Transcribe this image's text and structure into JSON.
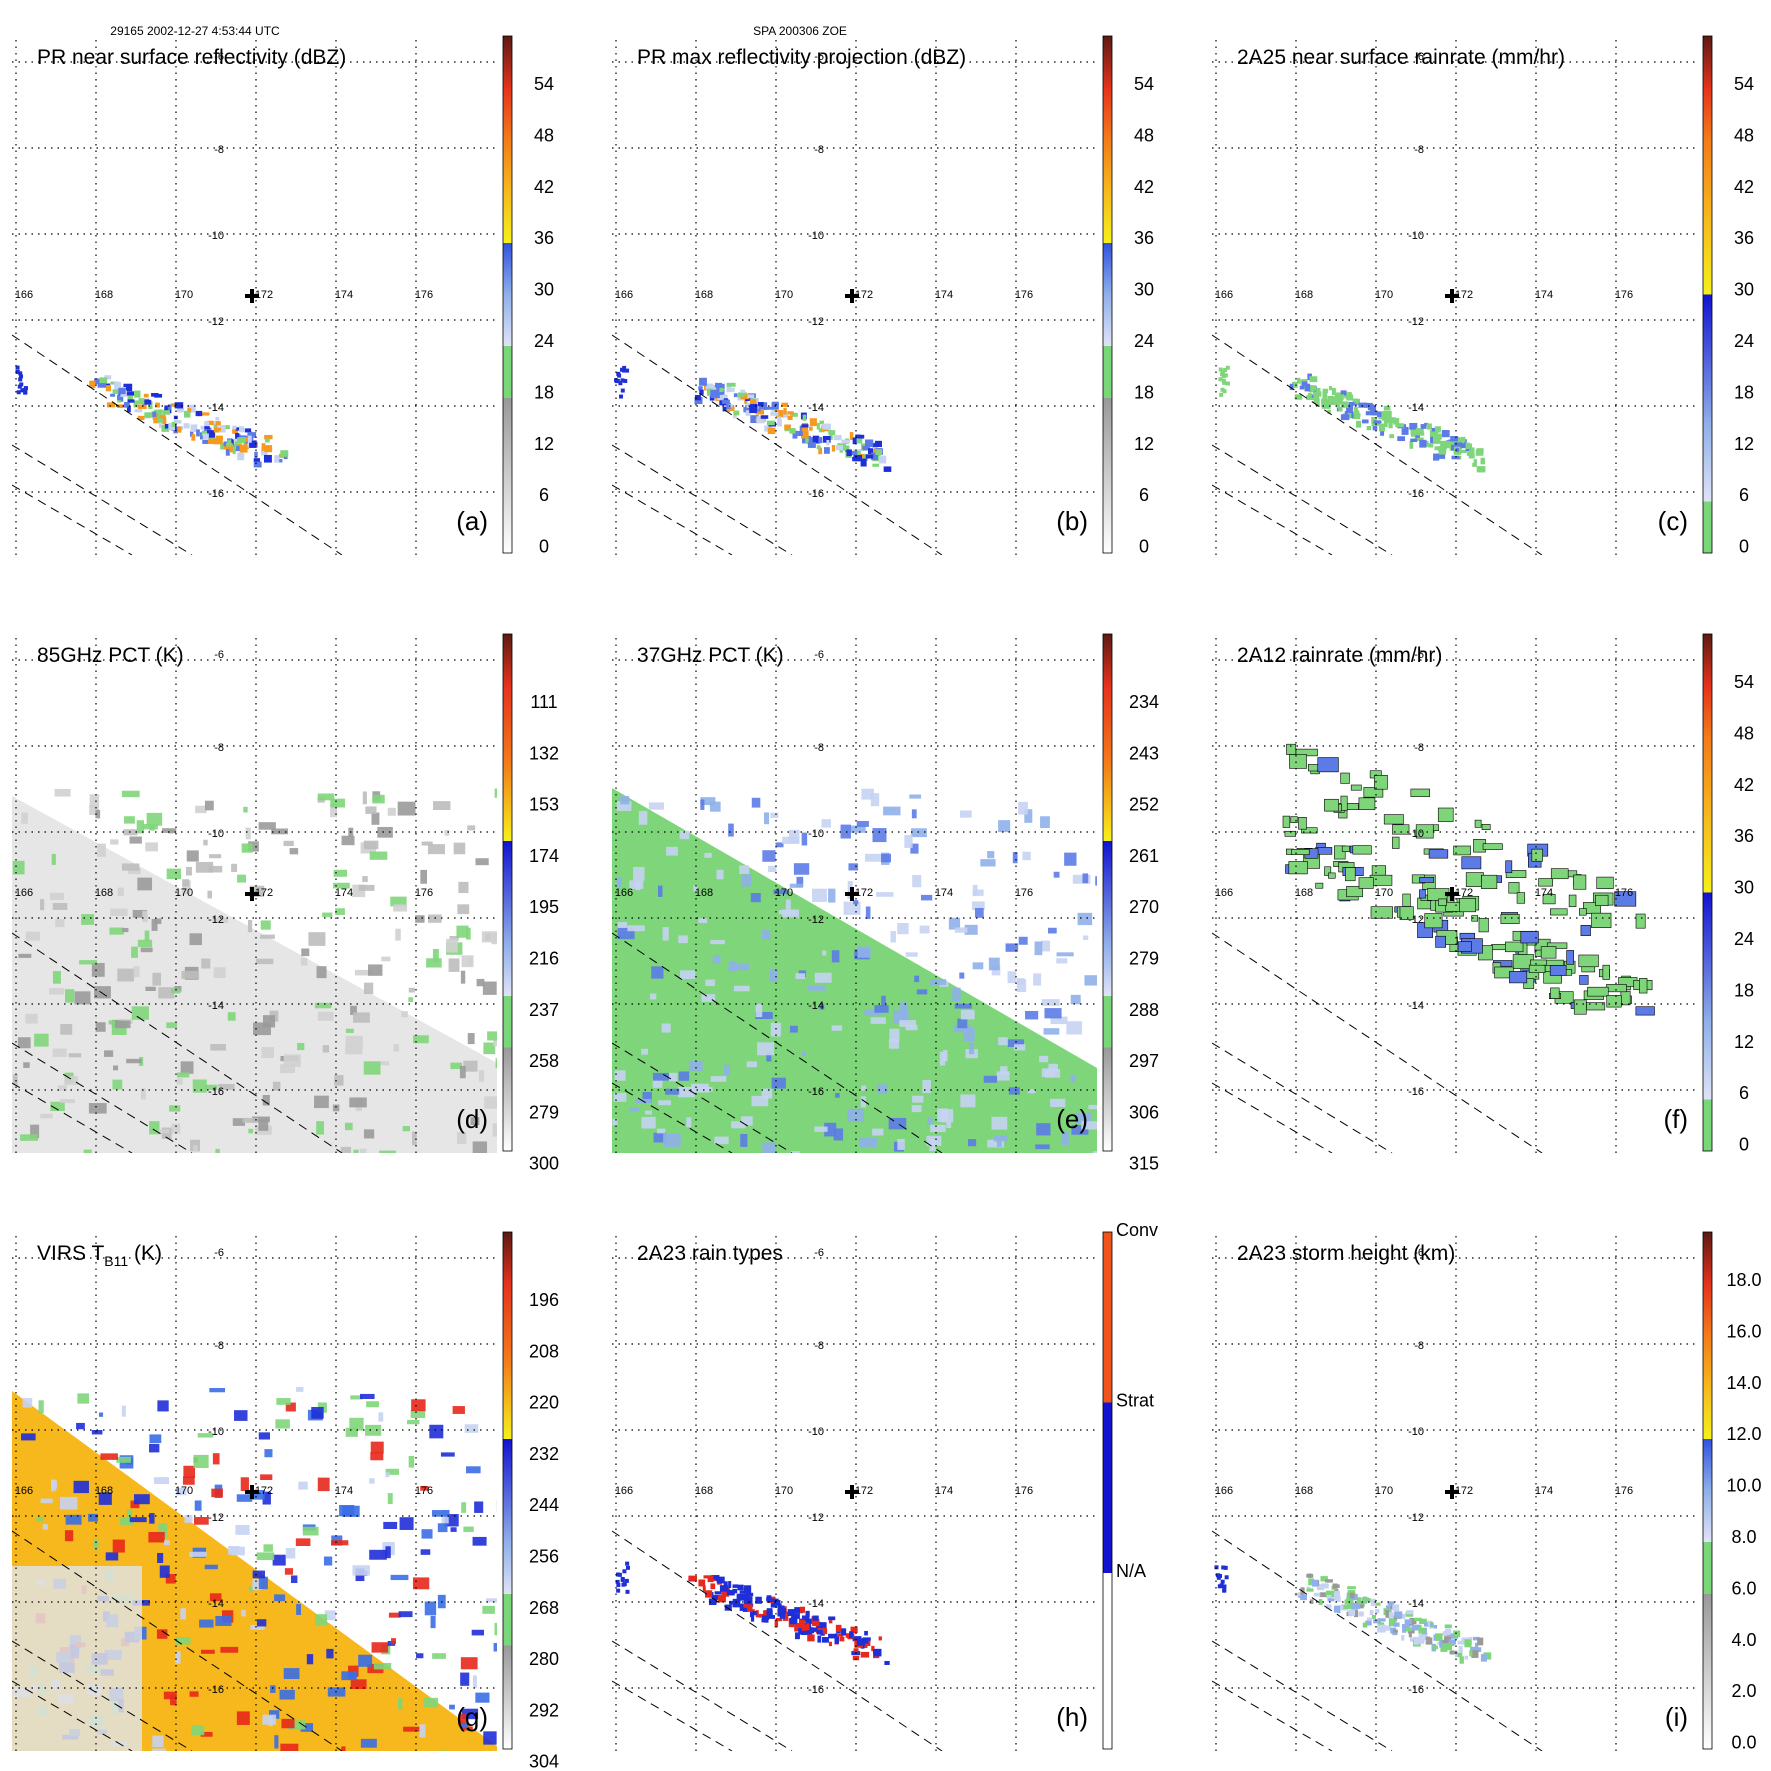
{
  "header": {
    "left": "29165 2002-12-27 4:53:44 UTC",
    "center": "SPA 200306 ZOE"
  },
  "lon_labels": [
    "166",
    "168",
    "170",
    "172",
    "174",
    "176"
  ],
  "lat_labels": [
    "-6",
    "-8",
    "-10",
    "-12",
    "-14",
    "-16"
  ],
  "panels": [
    {
      "id": "a",
      "title": "PR near surface reflectivity (dBZ)",
      "letter": "(a)",
      "ticks": [
        "54",
        "48",
        "42",
        "36",
        "30",
        "24",
        "18",
        "12",
        "6",
        "0"
      ],
      "scale": "dbz",
      "data": "pr"
    },
    {
      "id": "b",
      "title": "PR max reflectivity projection (dBZ)",
      "letter": "(b)",
      "ticks": [
        "54",
        "48",
        "42",
        "36",
        "30",
        "24",
        "18",
        "12",
        "6",
        "0"
      ],
      "scale": "dbz",
      "data": "pr"
    },
    {
      "id": "c",
      "title": "2A25 near surface rainrate (mm/hr)",
      "letter": "(c)",
      "ticks": [
        "54",
        "48",
        "42",
        "36",
        "30",
        "24",
        "18",
        "12",
        "6",
        "0"
      ],
      "scale": "rain",
      "data": "pr"
    },
    {
      "id": "d",
      "title": "85GHz PCT (K)",
      "letter": "(d)",
      "ticks": [
        "111",
        "132",
        "153",
        "174",
        "195",
        "216",
        "237",
        "258",
        "279",
        "300"
      ],
      "scale": "pct",
      "data": "tmi"
    },
    {
      "id": "e",
      "title": "37GHz PCT (K)",
      "letter": "(e)",
      "ticks": [
        "234",
        "243",
        "252",
        "261",
        "270",
        "279",
        "288",
        "297",
        "306",
        "315"
      ],
      "scale": "pct",
      "data": "tmi"
    },
    {
      "id": "f",
      "title": "2A12 rainrate (mm/hr)",
      "letter": "(f)",
      "ticks": [
        "54",
        "48",
        "42",
        "36",
        "30",
        "24",
        "18",
        "12",
        "6",
        "0"
      ],
      "scale": "rain",
      "data": "tmi"
    },
    {
      "id": "g",
      "title": "VIRS T",
      "title_sub": "B11",
      "title_tail": " (K)",
      "letter": "(g)",
      "ticks": [
        "196",
        "208",
        "220",
        "232",
        "244",
        "256",
        "268",
        "280",
        "292",
        "304"
      ],
      "scale": "pct",
      "data": "virs"
    },
    {
      "id": "h",
      "title": "2A23 rain types",
      "letter": "(h)",
      "ticks": [
        "Conv",
        "Strat",
        "N/A"
      ],
      "scale": "types",
      "data": "pr"
    },
    {
      "id": "i",
      "title": "2A23 storm height (km)",
      "letter": "(i)",
      "ticks": [
        "18.0",
        "16.0",
        "14.0",
        "12.0",
        "10.0",
        "8.0",
        "6.0",
        "4.0",
        "2.0",
        "0.0"
      ],
      "scale": "dbz",
      "data": "pr"
    }
  ],
  "colors": {
    "green": "#7fd67a",
    "lightblue": "#c7d3f2",
    "blue": "#1f2fd8",
    "yellow": "#f6e51a",
    "orange": "#f7991f",
    "red": "#e8281c",
    "darkred": "#6a1616"
  }
}
